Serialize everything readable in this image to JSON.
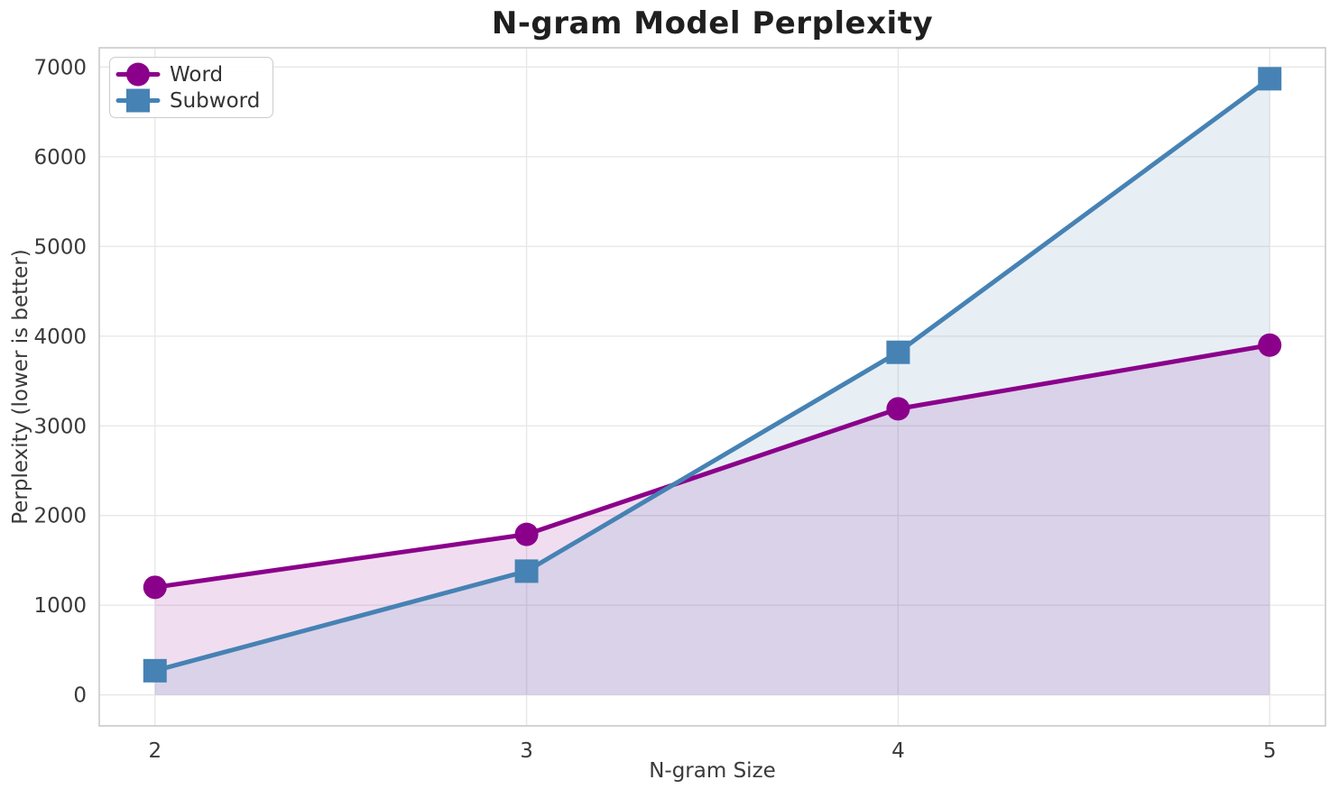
{
  "chart_data": {
    "type": "line",
    "title": "N-gram Model Perplexity",
    "xlabel": "N-gram Size",
    "ylabel": "Perplexity (lower is better)",
    "x": [
      2,
      3,
      4,
      5
    ],
    "series": [
      {
        "name": "Word",
        "marker": "circle",
        "color": "#8B008B",
        "values": [
          1200,
          1790,
          3190,
          3900
        ]
      },
      {
        "name": "Subword",
        "marker": "square",
        "color": "#4682B4",
        "values": [
          270,
          1380,
          3820,
          6870
        ]
      }
    ],
    "xticks": [
      2,
      3,
      4,
      5
    ],
    "yticks": [
      0,
      1000,
      2000,
      3000,
      4000,
      5000,
      6000,
      7000
    ],
    "xlim": [
      1.85,
      5.15
    ],
    "ylim": [
      -345,
      7215
    ],
    "grid": true,
    "grid_color": "#e8e8e8",
    "spine_color": "#d0d0d0",
    "area_fill": true,
    "fill_baseline": 0,
    "fill_opacity": 0.13,
    "legend_position": "upper-left"
  }
}
